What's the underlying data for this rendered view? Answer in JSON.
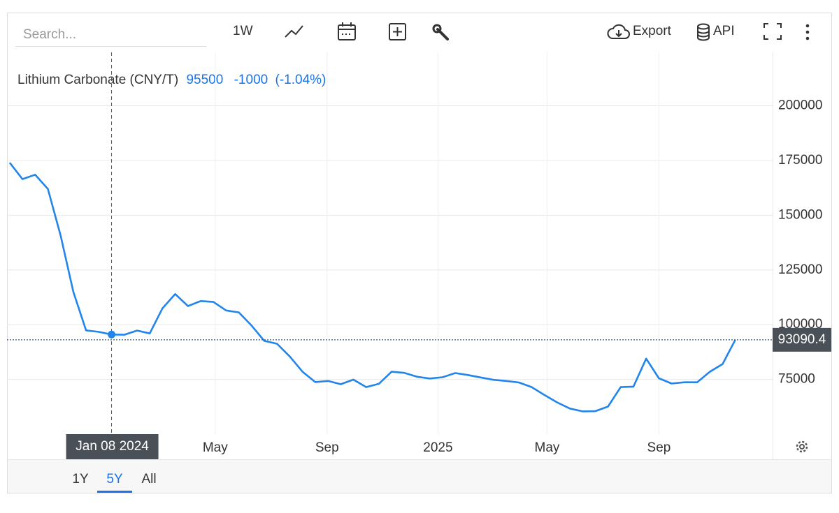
{
  "toolbar": {
    "search_placeholder": "Search...",
    "interval": "1W",
    "export": "Export",
    "api": "API"
  },
  "ranges": [
    "1Y",
    "5Y",
    "All"
  ],
  "active_range": "5Y",
  "quote": {
    "name": "Lithium Carbonate (CNY/T)",
    "price": 95500,
    "change": -1000,
    "change_pct": {
      "value": -1.04,
      "label": "(-1.04%)"
    }
  },
  "chart_data": {
    "type": "line",
    "x": [
      "2023-09-18",
      "2023-10-02",
      "2023-10-16",
      "2023-10-30",
      "2023-11-13",
      "2023-11-27",
      "2023-12-11",
      "2023-12-25",
      "2024-01-08",
      "2024-01-22",
      "2024-02-05",
      "2024-02-19",
      "2024-03-04",
      "2024-03-18",
      "2024-04-01",
      "2024-04-15",
      "2024-04-29",
      "2024-05-13",
      "2024-05-27",
      "2024-06-10",
      "2024-06-24",
      "2024-07-08",
      "2024-07-22",
      "2024-08-05",
      "2024-08-19",
      "2024-09-02",
      "2024-09-16",
      "2024-09-30",
      "2024-10-14",
      "2024-10-28",
      "2024-11-11",
      "2024-11-25",
      "2024-12-09",
      "2024-12-23",
      "2025-01-06",
      "2025-01-20",
      "2025-02-03",
      "2025-02-17",
      "2025-03-03",
      "2025-03-17",
      "2025-03-31",
      "2025-04-14",
      "2025-04-28",
      "2025-05-12",
      "2025-05-26",
      "2025-06-09",
      "2025-06-23",
      "2025-07-07",
      "2025-07-21",
      "2025-08-04",
      "2025-08-18",
      "2025-09-01",
      "2025-09-15",
      "2025-09-29",
      "2025-10-13",
      "2025-10-27",
      "2025-11-10",
      "2025-11-24"
    ],
    "series": [
      {
        "name": "Lithium Carbonate (CNY/T)",
        "color": "#2185eb",
        "values": [
          174000,
          166500,
          168500,
          162000,
          140700,
          115000,
          97400,
          96700,
          95500,
          95400,
          97300,
          96000,
          107500,
          114000,
          108500,
          110800,
          110400,
          106500,
          105600,
          99600,
          92600,
          91300,
          85500,
          78500,
          73800,
          74300,
          72800,
          74900,
          71500,
          73000,
          78500,
          78000,
          76200,
          75400,
          76000,
          77900,
          77000,
          75900,
          74800,
          74300,
          73600,
          71500,
          67900,
          64500,
          61700,
          60400,
          60500,
          62600,
          71500,
          71700,
          84500,
          75500,
          73100,
          73700,
          73700,
          78500,
          82000,
          93090.4
        ]
      }
    ],
    "xlim": [
      "2023-09-15",
      "2026-01-04"
    ],
    "xticks": [
      {
        "value": "2024-05-01",
        "label": "May"
      },
      {
        "value": "2024-09-01",
        "label": "Sep"
      },
      {
        "value": "2025-01-01",
        "label": "2025"
      },
      {
        "value": "2025-05-01",
        "label": "May"
      },
      {
        "value": "2025-09-01",
        "label": "Sep"
      }
    ],
    "ylim": [
      50000,
      224400
    ],
    "yticks": [
      75000,
      100000,
      125000,
      150000,
      175000,
      200000
    ],
    "grid": true,
    "last_value": 93090.4,
    "crosshair": {
      "x": "2024-01-08",
      "label": "Jan 08 2024"
    }
  }
}
